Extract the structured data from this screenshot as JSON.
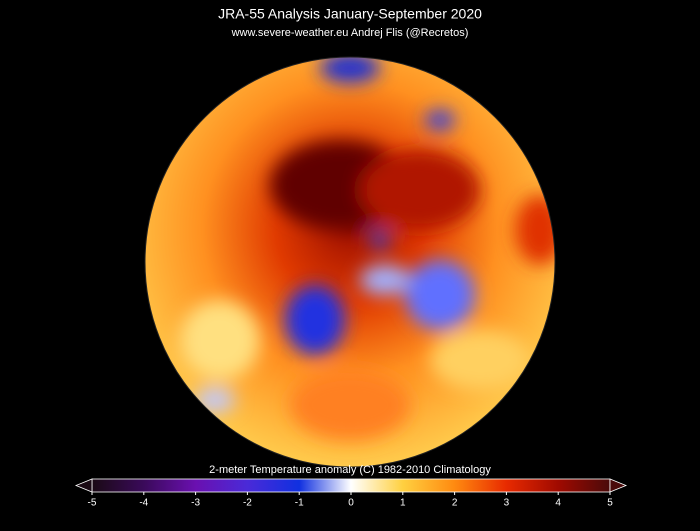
{
  "header": {
    "title": "JRA-55 Analysis  January-September 2020",
    "subtitle": "www.severe-weather.eu     Andrej Flis (@Recretos)"
  },
  "colorbar": {
    "label": "2-meter Temperature anomaly (C)    1982-2010 Climatology",
    "range": [
      -5,
      5
    ],
    "ticks": [
      -5,
      -4,
      -3,
      -2,
      -1,
      0,
      1,
      2,
      3,
      4,
      5
    ],
    "colors": [
      "#1a0a14",
      "#3a0a5a",
      "#6a10b0",
      "#4a2ad8",
      "#1030e0",
      "#ffffff",
      "#ffd040",
      "#ff8a10",
      "#e82a00",
      "#a00a00",
      "#4a0a0a"
    ]
  }
}
